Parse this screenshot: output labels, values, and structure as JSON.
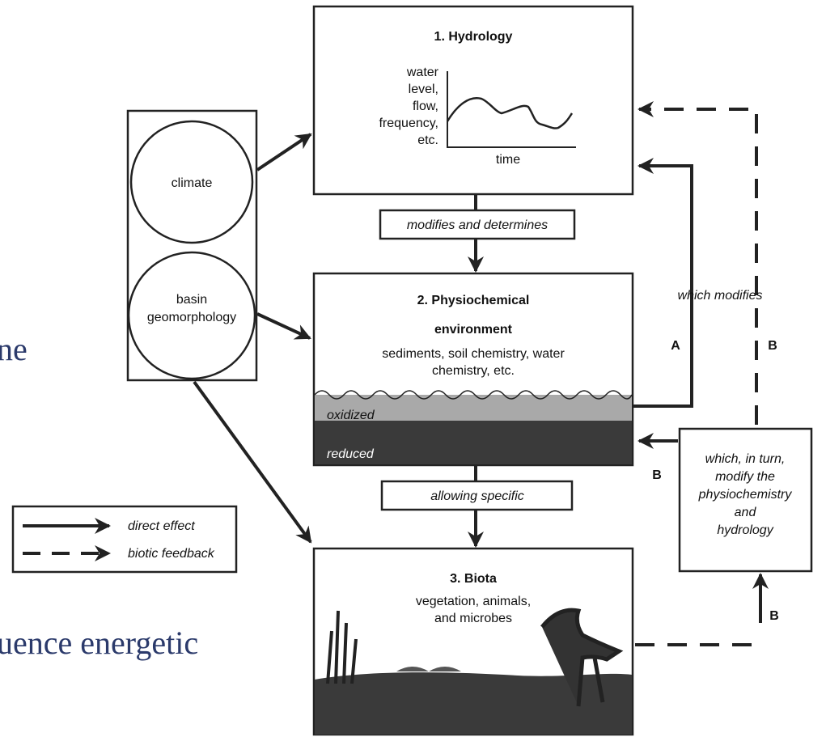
{
  "background_text": [
    "ne",
    "uence energetic"
  ],
  "drivers": {
    "items": [
      "climate",
      [
        "basin",
        "geomorphology"
      ]
    ]
  },
  "hydrology": {
    "title": "1. Hydrology",
    "y_label": [
      "water",
      "level,",
      "flow,",
      "frequency,",
      "etc."
    ],
    "x_label": "time"
  },
  "link_1_2": "modifies and determines",
  "physiochemical": {
    "title": [
      "2. Physiochemical",
      "environment"
    ],
    "subtitle": [
      "sediments, soil chemistry, water",
      "chemistry, etc."
    ],
    "layers": [
      "oxidized",
      "reduced"
    ]
  },
  "link_2_3": "allowing specific",
  "biota": {
    "title": "3. Biota",
    "subtitle": [
      "vegetation, animals,",
      "and microbes"
    ]
  },
  "feedback": {
    "which_modifies": "which modifies",
    "label_a": "A",
    "labels_b": [
      "B",
      "B",
      "B"
    ],
    "box": [
      "which, in turn,",
      "modify the",
      "physiochemistry",
      "and",
      "hydrology"
    ]
  },
  "legend": {
    "direct": "direct effect",
    "feedback": "biotic feedback"
  }
}
